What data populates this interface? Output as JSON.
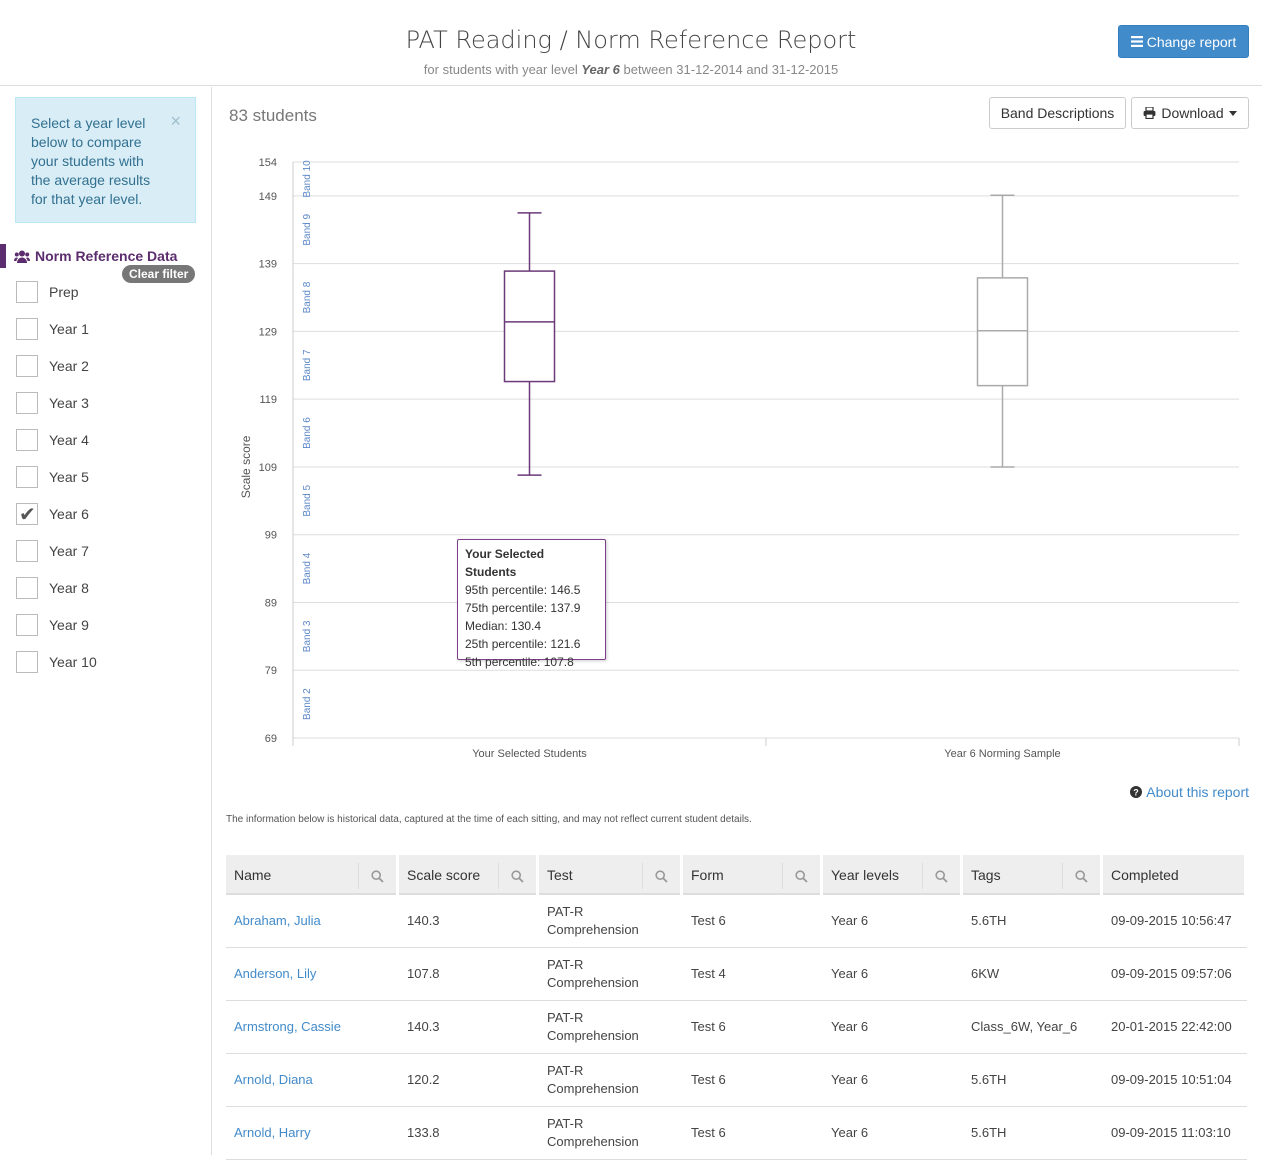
{
  "header": {
    "title": "PAT Reading / Norm Reference Report",
    "subtitle_prefix": "for students with year level",
    "subtitle_year": "Year 6",
    "subtitle_suffix": "between 31-12-2014 and 31-12-2015",
    "change_report_label": "Change report"
  },
  "sidebar": {
    "alert_text": "Select a year level below to compare your students with the average results for that year level.",
    "alert_close": "×",
    "section_title": "Norm Reference Data",
    "clear_filter_label": "Clear filter",
    "year_levels": [
      {
        "label": "Prep",
        "checked": false
      },
      {
        "label": "Year 1",
        "checked": false
      },
      {
        "label": "Year 2",
        "checked": false
      },
      {
        "label": "Year 3",
        "checked": false
      },
      {
        "label": "Year 4",
        "checked": false
      },
      {
        "label": "Year 5",
        "checked": false
      },
      {
        "label": "Year 6",
        "checked": true
      },
      {
        "label": "Year 7",
        "checked": false
      },
      {
        "label": "Year 8",
        "checked": false
      },
      {
        "label": "Year 9",
        "checked": false
      },
      {
        "label": "Year 10",
        "checked": false
      }
    ]
  },
  "main": {
    "student_count": "83 students",
    "band_descriptions_label": "Band Descriptions",
    "download_label": "Download",
    "about_label": "About this report",
    "info_text": "The information below is historical data, captured at the time of each sitting, and may not reflect current student details."
  },
  "chart_data": {
    "type": "boxplot",
    "ylabel": "Scale score",
    "ylim": [
      69,
      154
    ],
    "yticks": [
      154,
      149,
      139,
      129,
      119,
      109,
      99,
      89,
      79,
      69
    ],
    "bands": [
      {
        "label": "Band 10",
        "from": 149,
        "to": 154
      },
      {
        "label": "Band 9",
        "from": 139,
        "to": 149
      },
      {
        "label": "Band 8",
        "from": 129,
        "to": 139
      },
      {
        "label": "Band 7",
        "from": 119,
        "to": 129
      },
      {
        "label": "Band 6",
        "from": 109,
        "to": 119
      },
      {
        "label": "Band 5",
        "from": 99,
        "to": 109
      },
      {
        "label": "Band 4",
        "from": 89,
        "to": 99
      },
      {
        "label": "Band 3",
        "from": 79,
        "to": 89
      },
      {
        "label": "Band 2",
        "from": 69,
        "to": 79
      }
    ],
    "categories": [
      "Your Selected Students",
      "Year 6 Norming Sample"
    ],
    "series": [
      {
        "name": "Your Selected Students",
        "p95": 146.5,
        "p75": 137.9,
        "median": 130.4,
        "p25": 121.6,
        "p5": 107.8,
        "color": "#6b3a78"
      },
      {
        "name": "Year 6 Norming Sample",
        "p95": 149.1,
        "p75": 136.9,
        "median": 129.1,
        "p25": 121.0,
        "p5": 109.0,
        "color": "#aaaaaa"
      }
    ],
    "tooltip": {
      "title": "Your Selected Students",
      "lines": [
        "95th percentile: 146.5",
        "75th percentile: 137.9",
        "Median: 130.4",
        "25th percentile: 121.6",
        "5th percentile: 107.8"
      ]
    }
  },
  "table": {
    "columns": [
      "Name",
      "Scale score",
      "Test",
      "Form",
      "Year levels",
      "Tags",
      "Completed"
    ],
    "rows": [
      {
        "name": "Abraham, Julia",
        "score": "140.3",
        "test1": "PAT-R",
        "test2": "Comprehension",
        "form": "Test 6",
        "year": "Year 6",
        "tags": "5.6TH",
        "completed": "09-09-2015 10:56:47"
      },
      {
        "name": "Anderson, Lily",
        "score": "107.8",
        "test1": "PAT-R",
        "test2": "Comprehension",
        "form": "Test 4",
        "year": "Year 6",
        "tags": "6KW",
        "completed": "09-09-2015 09:57:06"
      },
      {
        "name": "Armstrong, Cassie",
        "score": "140.3",
        "test1": "PAT-R",
        "test2": "Comprehension",
        "form": "Test 6",
        "year": "Year 6",
        "tags": "Class_6W, Year_6",
        "completed": "20-01-2015 22:42:00"
      },
      {
        "name": "Arnold, Diana",
        "score": "120.2",
        "test1": "PAT-R",
        "test2": "Comprehension",
        "form": "Test 6",
        "year": "Year 6",
        "tags": "5.6TH",
        "completed": "09-09-2015 10:51:04"
      },
      {
        "name": "Arnold, Harry",
        "score": "133.8",
        "test1": "PAT-R",
        "test2": "Comprehension",
        "form": "Test 6",
        "year": "Year 6",
        "tags": "5.6TH",
        "completed": "09-09-2015 11:03:10"
      }
    ]
  }
}
